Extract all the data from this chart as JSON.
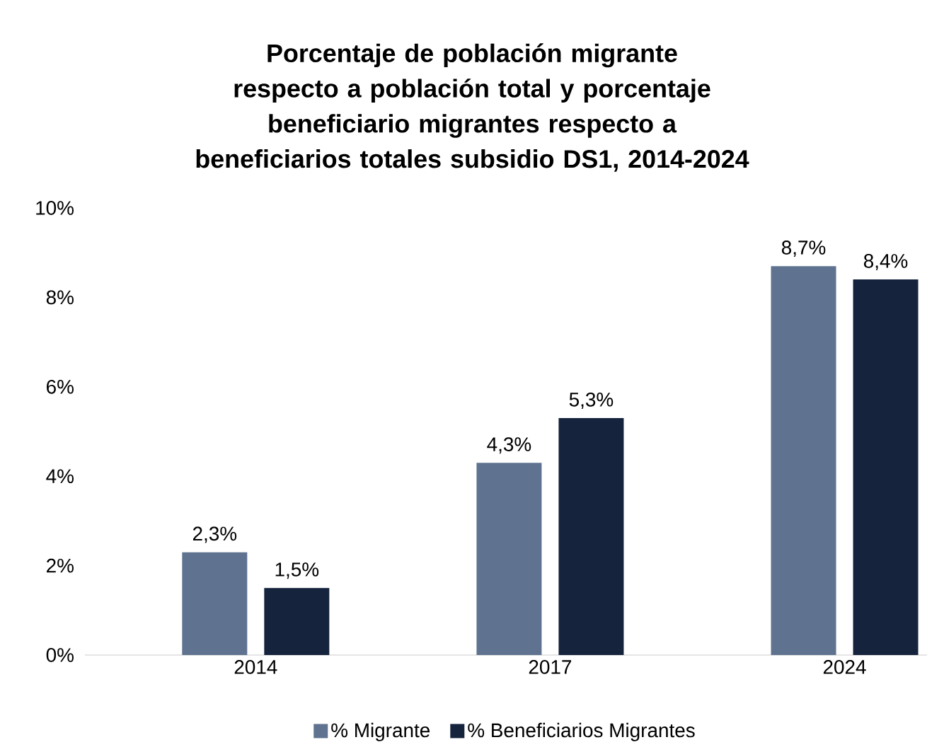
{
  "chart_data": {
    "type": "bar",
    "title": "Porcentaje de población migrante respecto a población total y porcentaje beneficiario migrantes respecto a beneficiarios totales subsidio DS1, 2014-2024",
    "categories": [
      "2014",
      "2017",
      "2024"
    ],
    "series": [
      {
        "name": "% Migrante",
        "color": "#5f7390",
        "values": [
          2.3,
          4.3,
          8.7
        ],
        "value_labels": [
          "2,3%",
          "4,3%",
          "8,7%"
        ]
      },
      {
        "name": "% Beneficiarios Migrantes",
        "color": "#15233d",
        "values": [
          1.5,
          5.3,
          8.4
        ],
        "value_labels": [
          "1,5%",
          "5,3%",
          "8,4%"
        ]
      }
    ],
    "ylim": [
      0,
      10
    ],
    "yticks": [
      {
        "value": 0,
        "label": "0%"
      },
      {
        "value": 2,
        "label": "2%"
      },
      {
        "value": 4,
        "label": "4%"
      },
      {
        "value": 6,
        "label": "6%"
      },
      {
        "value": 8,
        "label": "8%"
      },
      {
        "value": 10,
        "label": "10%"
      }
    ],
    "legend": "bottom"
  }
}
